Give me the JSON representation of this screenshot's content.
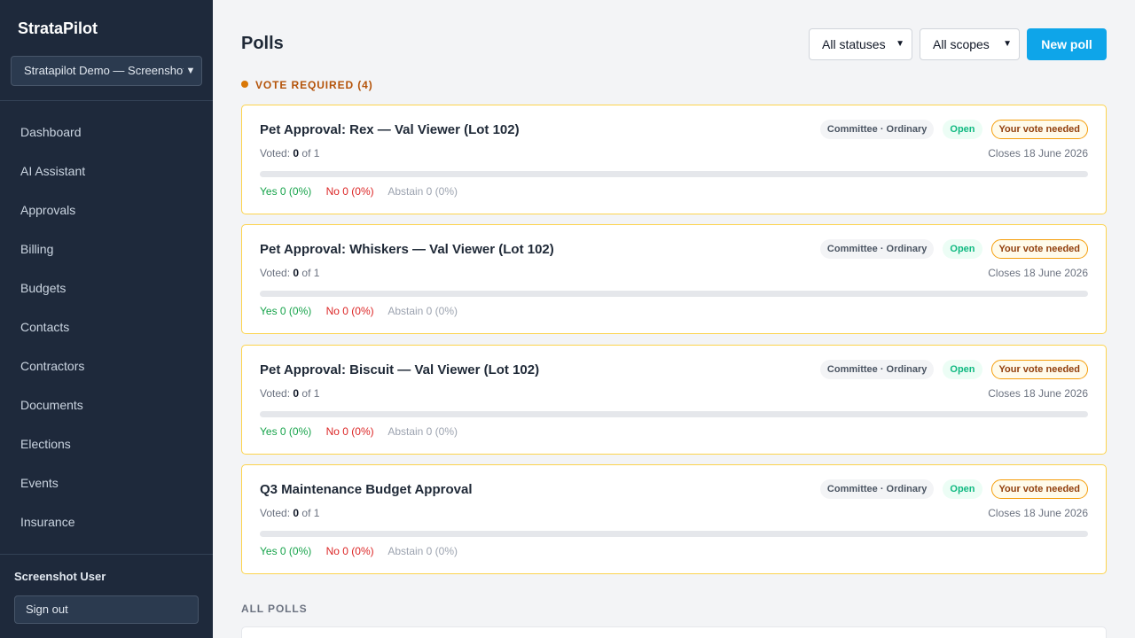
{
  "app": {
    "brand": "StrataPilot",
    "workspace": "Stratapilot Demo — Screenshot"
  },
  "sidebar": {
    "items": [
      {
        "label": "Dashboard"
      },
      {
        "label": "AI Assistant"
      },
      {
        "label": "Approvals"
      },
      {
        "label": "Billing"
      },
      {
        "label": "Budgets"
      },
      {
        "label": "Contacts"
      },
      {
        "label": "Contractors"
      },
      {
        "label": "Documents"
      },
      {
        "label": "Elections"
      },
      {
        "label": "Events"
      },
      {
        "label": "Insurance"
      }
    ],
    "user_name": "Screenshot User",
    "sign_out_label": "Sign out"
  },
  "header": {
    "title": "Polls",
    "status_filter": "All statuses",
    "scope_filter": "All scopes",
    "new_poll_label": "New poll"
  },
  "sections": {
    "vote_required": "VOTE REQUIRED (4)",
    "all_polls": "ALL POLLS"
  },
  "polls": [
    {
      "title": "Pet Approval: Rex — Val Viewer (Lot 102)",
      "scope": "Committee · Ordinary",
      "status": "Open",
      "vote_badge": "Your vote needed",
      "voted_label": "Voted:",
      "voted_count": "0",
      "voted_of": "of 1",
      "closes": "Closes 18 June 2026",
      "progress": 0,
      "yes": "Yes 0 (0%)",
      "no": "No 0 (0%)",
      "abstain": "Abstain 0 (0%)"
    },
    {
      "title": "Pet Approval: Whiskers — Val Viewer (Lot 102)",
      "scope": "Committee · Ordinary",
      "status": "Open",
      "vote_badge": "Your vote needed",
      "voted_label": "Voted:",
      "voted_count": "0",
      "voted_of": "of 1",
      "closes": "Closes 18 June 2026",
      "progress": 0,
      "yes": "Yes 0 (0%)",
      "no": "No 0 (0%)",
      "abstain": "Abstain 0 (0%)"
    },
    {
      "title": "Pet Approval: Biscuit — Val Viewer (Lot 102)",
      "scope": "Committee · Ordinary",
      "status": "Open",
      "vote_badge": "Your vote needed",
      "voted_label": "Voted:",
      "voted_count": "0",
      "voted_of": "of 1",
      "closes": "Closes 18 June 2026",
      "progress": 0,
      "yes": "Yes 0 (0%)",
      "no": "No 0 (0%)",
      "abstain": "Abstain 0 (0%)"
    },
    {
      "title": "Q3 Maintenance Budget Approval",
      "scope": "Committee · Ordinary",
      "status": "Open",
      "vote_badge": "Your vote needed",
      "voted_label": "Voted:",
      "voted_count": "0",
      "voted_of": "of 1",
      "closes": "Closes 18 June 2026",
      "progress": 0,
      "yes": "Yes 0 (0%)",
      "no": "No 0 (0%)",
      "abstain": "Abstain 0 (0%)"
    }
  ],
  "icons": {
    "select_chevron": "chevron-down-icon",
    "section_dot": "dot-icon"
  },
  "colors": {
    "sidebar_bg": "#1e293b",
    "accent": "#0ea5e9",
    "vote_border": "#fcd34d",
    "warning": "#b45309",
    "yes": "#16a34a",
    "no": "#dc2626"
  }
}
